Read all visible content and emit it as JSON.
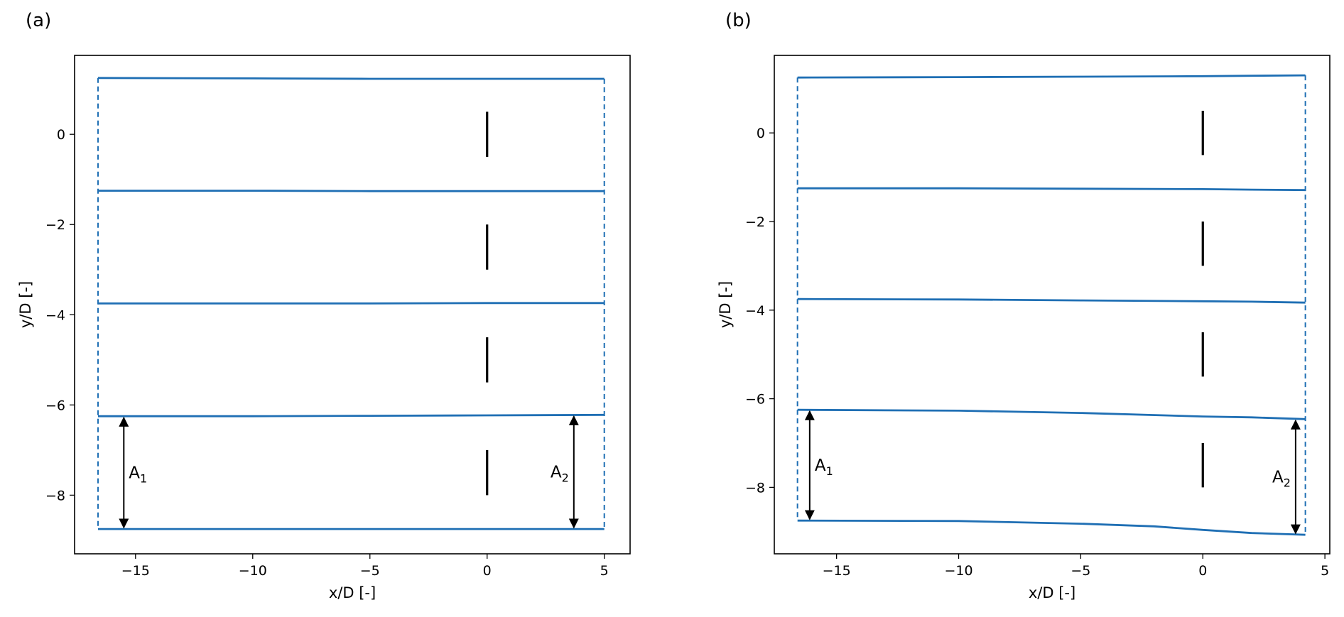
{
  "panels": [
    {
      "label": "(a)"
    },
    {
      "label": "(b)"
    }
  ],
  "colors": {
    "series": "#1f6fb4",
    "turbine": "#000000",
    "arrow": "#000000"
  },
  "chart_data": [
    {
      "type": "line",
      "panel": "(a)",
      "xlabel": "x/D [-]",
      "ylabel": "y/D [-]",
      "xlim": [
        -17.6,
        6.1
      ],
      "ylim": [
        -9.3,
        1.75
      ],
      "xticks": [
        -15,
        -10,
        -5,
        0,
        5
      ],
      "yticks": [
        0,
        -2,
        -4,
        -6,
        -8
      ],
      "xtick_labels": [
        "−15",
        "−10",
        "−5",
        "0",
        "5"
      ],
      "ytick_labels": [
        "0",
        "−2",
        "−4",
        "−6",
        "−8"
      ],
      "grid": false,
      "series": [
        {
          "x": [
            -16.6,
            -10,
            -5,
            0,
            5.0
          ],
          "y": [
            1.25,
            1.24,
            1.23,
            1.23,
            1.23
          ]
        },
        {
          "x": [
            -16.6,
            -10,
            -5,
            0,
            5.0
          ],
          "y": [
            -1.25,
            -1.25,
            -1.26,
            -1.26,
            -1.26
          ]
        },
        {
          "x": [
            -16.6,
            -10,
            -5,
            0,
            5.0
          ],
          "y": [
            -3.75,
            -3.75,
            -3.75,
            -3.74,
            -3.74
          ]
        },
        {
          "x": [
            -16.6,
            -10,
            -5,
            0,
            5.0
          ],
          "y": [
            -6.25,
            -6.25,
            -6.24,
            -6.23,
            -6.22
          ]
        },
        {
          "x": [
            -16.6,
            -10,
            -5,
            0,
            5.0
          ],
          "y": [
            -8.75,
            -8.75,
            -8.75,
            -8.75,
            -8.75
          ]
        }
      ],
      "dashed_bounds": {
        "x": [
          -16.6,
          5.0
        ]
      },
      "turbines": [
        {
          "x": 0,
          "y": [
            -0.5,
            0.5
          ]
        },
        {
          "x": 0,
          "y": [
            -3.0,
            -2.0
          ]
        },
        {
          "x": 0,
          "y": [
            -5.5,
            -4.5
          ]
        },
        {
          "x": 0,
          "y": [
            -8.0,
            -7.0
          ]
        }
      ],
      "annotations": [
        {
          "name": "A1",
          "text": "A",
          "sub": "1",
          "x": -15.5,
          "y": [
            -6.25,
            -8.75
          ]
        },
        {
          "name": "A2",
          "text": "A",
          "sub": "2",
          "x": 3.7,
          "y": [
            -6.22,
            -8.75
          ]
        }
      ]
    },
    {
      "type": "line",
      "panel": "(b)",
      "xlabel": "x/D [-]",
      "ylabel": "y/D [-]",
      "xlim": [
        -17.55,
        5.2
      ],
      "ylim": [
        -9.5,
        1.75
      ],
      "xticks": [
        -15,
        -10,
        -5,
        0,
        5
      ],
      "yticks": [
        0,
        -2,
        -4,
        -6,
        -8
      ],
      "xtick_labels": [
        "−15",
        "−10",
        "−5",
        "0",
        "5"
      ],
      "ytick_labels": [
        "0",
        "−2",
        "−4",
        "−6",
        "−8"
      ],
      "grid": false,
      "series": [
        {
          "x": [
            -16.6,
            -10,
            -5,
            0,
            2,
            4.2
          ],
          "y": [
            1.25,
            1.26,
            1.27,
            1.28,
            1.29,
            1.3
          ]
        },
        {
          "x": [
            -16.6,
            -10,
            -5,
            0,
            2,
            4.2
          ],
          "y": [
            -1.25,
            -1.25,
            -1.26,
            -1.27,
            -1.28,
            -1.29
          ]
        },
        {
          "x": [
            -16.6,
            -10,
            -5,
            0,
            2,
            4.2
          ],
          "y": [
            -3.75,
            -3.76,
            -3.78,
            -3.8,
            -3.81,
            -3.83
          ]
        },
        {
          "x": [
            -16.6,
            -10,
            -5,
            0,
            2,
            4.2
          ],
          "y": [
            -6.25,
            -6.27,
            -6.32,
            -6.4,
            -6.42,
            -6.46
          ]
        },
        {
          "x": [
            -16.6,
            -10,
            -5,
            -2,
            0,
            2,
            4.2
          ],
          "y": [
            -8.75,
            -8.76,
            -8.82,
            -8.88,
            -8.96,
            -9.03,
            -9.07
          ]
        }
      ],
      "dashed_bounds": {
        "x": [
          -16.6,
          4.2
        ]
      },
      "turbines": [
        {
          "x": 0,
          "y": [
            -0.5,
            0.5
          ]
        },
        {
          "x": 0,
          "y": [
            -3.0,
            -2.0
          ]
        },
        {
          "x": 0,
          "y": [
            -5.5,
            -4.5
          ]
        },
        {
          "x": 0,
          "y": [
            -8.0,
            -7.0
          ]
        }
      ],
      "annotations": [
        {
          "name": "A1",
          "text": "A",
          "sub": "1",
          "x": -16.1,
          "y": [
            -6.25,
            -8.75
          ]
        },
        {
          "name": "A2",
          "text": "A",
          "sub": "2",
          "x": 3.8,
          "y": [
            -6.46,
            -9.07
          ]
        }
      ]
    }
  ]
}
